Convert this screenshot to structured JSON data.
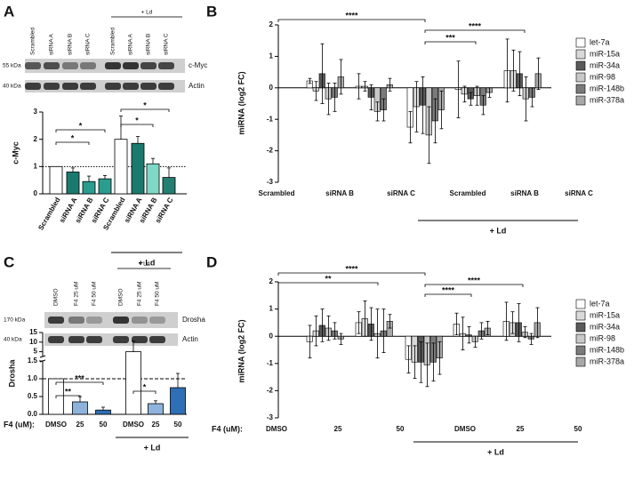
{
  "chart_data": [
    {
      "type": "bar",
      "panel_label": "A",
      "blot": {
        "lanes": [
          "Scrambled",
          "siRNA A",
          "siRNA B",
          "siRNA C",
          "Scrambled",
          "siRNA A",
          "siRNA B",
          "siRNA C"
        ],
        "group_label": "+ Ld",
        "markers": [
          "55 kDa",
          "40 kDa"
        ],
        "proteins": [
          "c-Myc",
          "Actin"
        ]
      },
      "ylabel": "c-Myc",
      "categories": [
        "Scrambled",
        "siRNA A",
        "siRNA B",
        "siRNA C",
        "Scrambled",
        "siRNA A",
        "siRNA B",
        "siRNA C"
      ],
      "values": [
        1.0,
        0.8,
        0.45,
        0.55,
        2.0,
        1.85,
        1.1,
        0.6
      ],
      "errors": [
        0,
        0.15,
        0.2,
        0.12,
        0.85,
        0.25,
        0.2,
        0.35
      ],
      "colors": [
        "#ffffff",
        "#1b7a6e",
        "#2a9d8f",
        "#2a9d8f",
        "#ffffff",
        "#1b7a6e",
        "#7fd8c6",
        "#237f72"
      ],
      "ylim": [
        0,
        3
      ],
      "yticks": [
        0,
        1,
        2,
        3
      ],
      "reference_line": 1,
      "group_label": "+ Ld",
      "significance": [
        "*",
        "*",
        "*",
        "*"
      ]
    },
    {
      "type": "bar",
      "panel_label": "B",
      "ylabel": "miRNA (log2 FC)",
      "categories": [
        "Scrambled",
        "siRNA B",
        "siRNA C",
        "Scrambled",
        "siRNA B",
        "siRNA C"
      ],
      "series": [
        {
          "name": "let-7a",
          "color": "#ffffff",
          "values": [
            0,
            0.22,
            0.05,
            -1.25,
            -0.05,
            0.55
          ],
          "errors": [
            0,
            0.08,
            0.4,
            0.5,
            0.9,
            1.0
          ]
        },
        {
          "name": "miR-15a",
          "color": "#d9d9d9",
          "values": [
            0,
            -0.1,
            0.05,
            -0.6,
            -0.2,
            0.55
          ],
          "errors": [
            0,
            0.3,
            0.15,
            0.8,
            0.25,
            0.65
          ]
        },
        {
          "name": "miR-34a",
          "color": "#5a5a5a",
          "values": [
            0,
            0.45,
            -0.3,
            -0.55,
            -0.35,
            0.45
          ],
          "errors": [
            0,
            0.95,
            0.4,
            0.9,
            0.2,
            0.7
          ]
        },
        {
          "name": "miR-98",
          "color": "#c8c8c8",
          "values": [
            0,
            -0.35,
            -0.75,
            -1.5,
            -0.25,
            -0.35
          ],
          "errors": [
            0,
            0.5,
            0.3,
            0.9,
            0.3,
            0.7
          ]
        },
        {
          "name": "miR-148b",
          "color": "#7a7a7a",
          "values": [
            0,
            -0.3,
            -0.7,
            -1.05,
            -0.55,
            -0.3
          ],
          "errors": [
            0,
            0.45,
            0.35,
            0.7,
            0.3,
            0.3
          ]
        },
        {
          "name": "miR-378a",
          "color": "#a8a8a8",
          "values": [
            0,
            0.35,
            0.1,
            -0.7,
            -0.15,
            0.45
          ],
          "errors": [
            0,
            0.55,
            0.2,
            0.6,
            0.15,
            0.5
          ]
        }
      ],
      "ylim": [
        -3,
        2
      ],
      "yticks": [
        -3,
        -2,
        -1,
        0,
        1,
        2
      ],
      "group_label": "+ Ld",
      "significance": [
        "****",
        "****",
        "***"
      ]
    },
    {
      "type": "bar",
      "panel_label": "C",
      "blot": {
        "lanes": [
          "DMSO",
          "F4 25 uM",
          "F4 50 uM",
          "DMSO",
          "F4 25 uM",
          "F4 50 uM"
        ],
        "group_label": "+ Ld",
        "markers": [
          "170 kDa",
          "40 kDa"
        ],
        "proteins": [
          "Drosha",
          "Actin"
        ]
      },
      "ylabel": "Drosha",
      "xlabel": "F4 (uM):",
      "categories": [
        "DMSO",
        "25",
        "50",
        "DMSO",
        "25",
        "50"
      ],
      "values": [
        1.0,
        0.35,
        0.12,
        5.0,
        0.3,
        0.75
      ],
      "errors": [
        0,
        0.15,
        0.08,
        5.5,
        0.08,
        0.4
      ],
      "colors": [
        "#ffffff",
        "#8db3dd",
        "#2e6fb5",
        "#ffffff",
        "#8db3dd",
        "#2e6fb5"
      ],
      "ylim": [
        0,
        15
      ],
      "ybreak": [
        1.5,
        2.5
      ],
      "yticks": [
        {
          "value": 0,
          "label": "0.0"
        },
        0.5,
        {
          "value": 1,
          "label": "1.0"
        },
        1.5,
        5,
        10,
        15
      ],
      "reference_line": 1,
      "group_label": "+ Ld",
      "significance": [
        "***",
        "**",
        "*"
      ]
    },
    {
      "type": "bar",
      "panel_label": "D",
      "ylabel": "miRNA (log2 FC)",
      "xlabel": "F4 (uM):",
      "categories": [
        "DMSO",
        "25",
        "50",
        "DMSO",
        "25",
        "50"
      ],
      "series": [
        {
          "name": "let-7a",
          "color": "#ffffff",
          "values": [
            0,
            -0.2,
            0.5,
            -0.85,
            0.45,
            0.55
          ],
          "errors": [
            0,
            0.6,
            0.4,
            0.5,
            0.4,
            0.7
          ]
        },
        {
          "name": "miR-15a",
          "color": "#d9d9d9",
          "values": [
            0,
            0.2,
            0.65,
            -0.95,
            0.1,
            0.5
          ],
          "errors": [
            0,
            0.55,
            0.65,
            0.6,
            0.6,
            0.4
          ]
        },
        {
          "name": "miR-34a",
          "color": "#5a5a5a",
          "values": [
            0,
            0.4,
            0.45,
            -0.95,
            0.05,
            0.5
          ],
          "errors": [
            0,
            0.6,
            0.6,
            0.75,
            0.3,
            0.7
          ]
        },
        {
          "name": "miR-98",
          "color": "#c8c8c8",
          "values": [
            0,
            0.3,
            0.1,
            -1.05,
            -0.2,
            0.15
          ],
          "errors": [
            0,
            0.45,
            0.9,
            0.8,
            0.2,
            0.2
          ]
        },
        {
          "name": "miR-148b",
          "color": "#7a7a7a",
          "values": [
            0,
            0.2,
            0.2,
            -0.95,
            0.2,
            -0.1
          ],
          "errors": [
            0,
            0.3,
            0.8,
            0.7,
            0.3,
            0.2
          ]
        },
        {
          "name": "miR-378a",
          "color": "#a8a8a8",
          "values": [
            0,
            -0.1,
            0.55,
            -0.8,
            0.3,
            0.5
          ],
          "errors": [
            0,
            0.2,
            0.25,
            0.6,
            0.25,
            0.55
          ]
        }
      ],
      "ylim": [
        -3,
        2
      ],
      "yticks": [
        -3,
        -2,
        -1,
        0,
        1,
        2
      ],
      "group_label": "+ Ld",
      "significance": [
        "****",
        "**",
        "****",
        "****"
      ]
    }
  ]
}
